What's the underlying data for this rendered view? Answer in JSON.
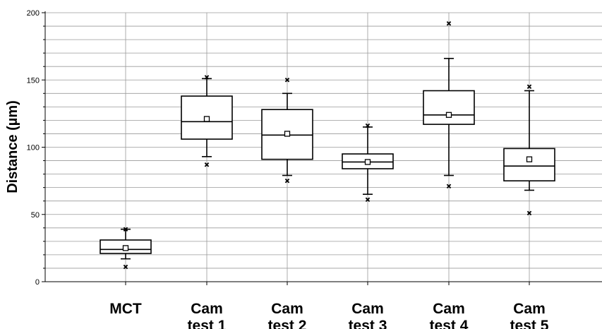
{
  "chart_data": {
    "type": "box",
    "title": "",
    "xlabel": "",
    "ylabel": "Distance (µm)",
    "ylim": [
      0,
      200
    ],
    "yticks": [
      0,
      50,
      100,
      150,
      200
    ],
    "grid": true,
    "categories": [
      [
        "MCT"
      ],
      [
        "Cam",
        "test 1"
      ],
      [
        "Cam",
        "test 2"
      ],
      [
        "Cam",
        "test 3"
      ],
      [
        "Cam",
        "test 4"
      ],
      [
        "Cam",
        "test 5"
      ]
    ],
    "boxes": [
      {
        "whisker_low": 17,
        "q1": 21,
        "median": 24,
        "q3": 31,
        "whisker_high": 39,
        "mean": 25,
        "extremes": [
          39,
          11
        ]
      },
      {
        "whisker_low": 93,
        "q1": 106,
        "median": 119,
        "q3": 138,
        "whisker_high": 151,
        "mean": 121,
        "extremes": [
          152,
          87
        ]
      },
      {
        "whisker_low": 79,
        "q1": 91,
        "median": 109,
        "q3": 128,
        "whisker_high": 140,
        "mean": 110,
        "extremes": [
          150,
          75
        ]
      },
      {
        "whisker_low": 65,
        "q1": 84,
        "median": 89,
        "q3": 95,
        "whisker_high": 115,
        "mean": 89,
        "extremes": [
          116,
          61
        ]
      },
      {
        "whisker_low": 79,
        "q1": 117,
        "median": 124,
        "q3": 142,
        "whisker_high": 166,
        "mean": 124,
        "extremes": [
          192,
          71
        ]
      },
      {
        "whisker_low": 68,
        "q1": 75,
        "median": 86,
        "q3": 99,
        "whisker_high": 142,
        "mean": 91,
        "extremes": [
          145,
          51
        ]
      }
    ]
  }
}
